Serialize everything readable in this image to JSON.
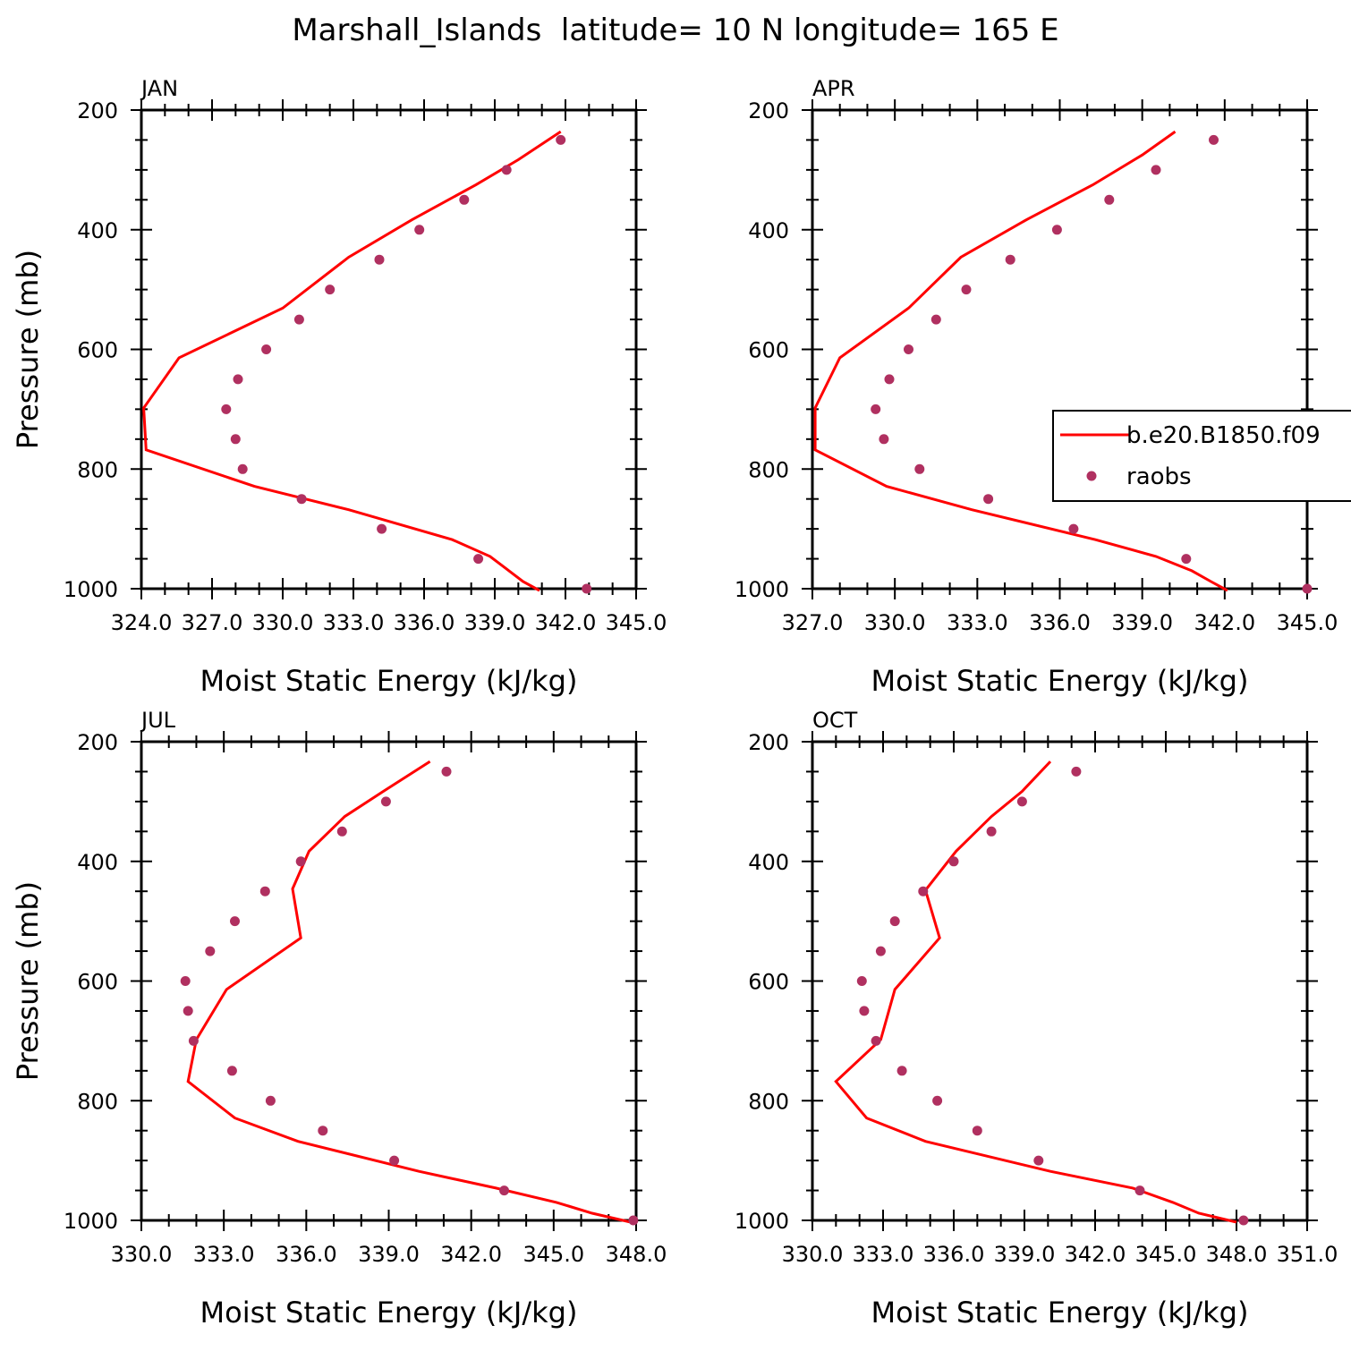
{
  "title": "Marshall_Islands  latitude= 10 N longitude= 165 E",
  "colors": {
    "model": "#ff0000",
    "obs": "#b03060",
    "axis": "#000000"
  },
  "chart_data": [
    {
      "type": "line",
      "panel": "JAN",
      "xlabel": "Moist Static Energy (kJ/kg)",
      "ylabel": "Pressure (mb)",
      "xlim": [
        324.0,
        345.0
      ],
      "xticks": [
        "324.0",
        "327.0",
        "330.0",
        "333.0",
        "336.0",
        "339.0",
        "342.0",
        "345.0"
      ],
      "ylim": [
        200,
        1000
      ],
      "yticks": [
        "200",
        "400",
        "600",
        "800",
        "1000"
      ],
      "y_inverted": true,
      "series": [
        {
          "kind": "line",
          "pressure": [
            236,
            283,
            325,
            383,
            446,
            531,
            614,
            698,
            768,
            829,
            868,
            918,
            946,
            970,
            988,
            1003
          ],
          "mse": [
            341.8,
            340.0,
            338.2,
            335.5,
            332.8,
            330.0,
            325.6,
            324.1,
            324.2,
            328.8,
            332.8,
            337.2,
            338.8,
            339.6,
            340.2,
            340.9
          ]
        },
        {
          "kind": "scatter",
          "pressure": [
            250,
            300,
            350,
            400,
            450,
            500,
            550,
            600,
            650,
            700,
            750,
            800,
            850,
            900,
            950,
            1000
          ],
          "mse": [
            341.8,
            339.5,
            337.7,
            335.8,
            334.1,
            332.0,
            330.7,
            329.3,
            328.1,
            327.6,
            328.0,
            328.3,
            330.8,
            334.2,
            338.3,
            342.9
          ]
        }
      ]
    },
    {
      "type": "line",
      "panel": "APR",
      "xlabel": "Moist Static Energy (kJ/kg)",
      "ylabel": "",
      "xlim": [
        327.0,
        345.0
      ],
      "xticks": [
        "327.0",
        "330.0",
        "333.0",
        "336.0",
        "339.0",
        "342.0",
        "345.0"
      ],
      "ylim": [
        200,
        1000
      ],
      "yticks": [
        "200",
        "400",
        "600",
        "800",
        "1000"
      ],
      "y_inverted": true,
      "series": [
        {
          "kind": "line",
          "pressure": [
            236,
            275,
            325,
            383,
            446,
            531,
            614,
            698,
            768,
            829,
            868,
            918,
            946,
            970,
            988,
            1003
          ],
          "mse": [
            340.2,
            339.0,
            337.2,
            334.8,
            332.4,
            330.5,
            328.0,
            327.1,
            327.1,
            329.7,
            332.8,
            337.3,
            339.5,
            340.8,
            341.5,
            342.1
          ]
        },
        {
          "kind": "scatter",
          "pressure": [
            250,
            300,
            350,
            400,
            450,
            500,
            550,
            600,
            650,
            700,
            750,
            800,
            850,
            900,
            950,
            1000
          ],
          "mse": [
            341.6,
            339.5,
            337.8,
            335.9,
            334.2,
            332.6,
            331.5,
            330.5,
            329.8,
            329.3,
            329.6,
            330.9,
            333.4,
            336.5,
            340.6,
            345.0
          ]
        }
      ]
    },
    {
      "type": "line",
      "panel": "JUL",
      "xlabel": "Moist Static Energy (kJ/kg)",
      "ylabel": "Pressure (mb)",
      "xlim": [
        330.0,
        348.0
      ],
      "xticks": [
        "330.0",
        "333.0",
        "336.0",
        "339.0",
        "342.0",
        "345.0",
        "348.0"
      ],
      "ylim": [
        200,
        1000
      ],
      "yticks": [
        "200",
        "400",
        "600",
        "800",
        "1000"
      ],
      "y_inverted": true,
      "series": [
        {
          "kind": "line",
          "pressure": [
            233,
            283,
            325,
            383,
            446,
            528,
            614,
            698,
            768,
            829,
            868,
            918,
            946,
            970,
            988,
            1003
          ],
          "mse": [
            340.5,
            338.8,
            337.4,
            336.1,
            335.5,
            335.8,
            333.1,
            332.0,
            331.7,
            333.4,
            335.7,
            340.1,
            342.9,
            345.1,
            346.4,
            347.8
          ]
        },
        {
          "kind": "scatter",
          "pressure": [
            250,
            300,
            350,
            400,
            450,
            500,
            550,
            600,
            650,
            700,
            750,
            800,
            850,
            900,
            950,
            1000
          ],
          "mse": [
            341.1,
            338.9,
            337.3,
            335.8,
            334.5,
            333.4,
            332.5,
            331.6,
            331.7,
            331.9,
            333.3,
            334.7,
            336.6,
            339.2,
            343.2,
            347.9
          ]
        }
      ]
    },
    {
      "type": "line",
      "panel": "OCT",
      "xlabel": "Moist Static Energy (kJ/kg)",
      "ylabel": "",
      "xlim": [
        330.0,
        351.0
      ],
      "xticks": [
        "330.0",
        "333.0",
        "336.0",
        "339.0",
        "342.0",
        "345.0",
        "348.0",
        "351.0"
      ],
      "ylim": [
        200,
        1000
      ],
      "yticks": [
        "200",
        "400",
        "600",
        "800",
        "1000"
      ],
      "y_inverted": true,
      "series": [
        {
          "kind": "line",
          "pressure": [
            233,
            283,
            325,
            383,
            448,
            528,
            614,
            698,
            768,
            829,
            868,
            918,
            946,
            970,
            988,
            1003
          ],
          "mse": [
            340.1,
            338.9,
            337.6,
            336.1,
            334.8,
            335.4,
            333.5,
            332.9,
            331.0,
            332.3,
            334.8,
            340.1,
            343.6,
            345.3,
            346.4,
            348.0
          ]
        },
        {
          "kind": "scatter",
          "pressure": [
            250,
            300,
            350,
            400,
            450,
            500,
            550,
            600,
            650,
            700,
            750,
            800,
            850,
            900,
            950,
            1000
          ],
          "mse": [
            341.2,
            338.9,
            337.6,
            336.0,
            334.7,
            333.5,
            332.9,
            332.1,
            332.2,
            332.7,
            333.8,
            335.3,
            337.0,
            339.6,
            343.9,
            348.3
          ]
        }
      ]
    }
  ],
  "legend": {
    "placement": "right of APR panel",
    "items": [
      {
        "label": "b.e20.B1850.f09",
        "kind": "line"
      },
      {
        "label": "raobs",
        "kind": "marker"
      }
    ]
  }
}
